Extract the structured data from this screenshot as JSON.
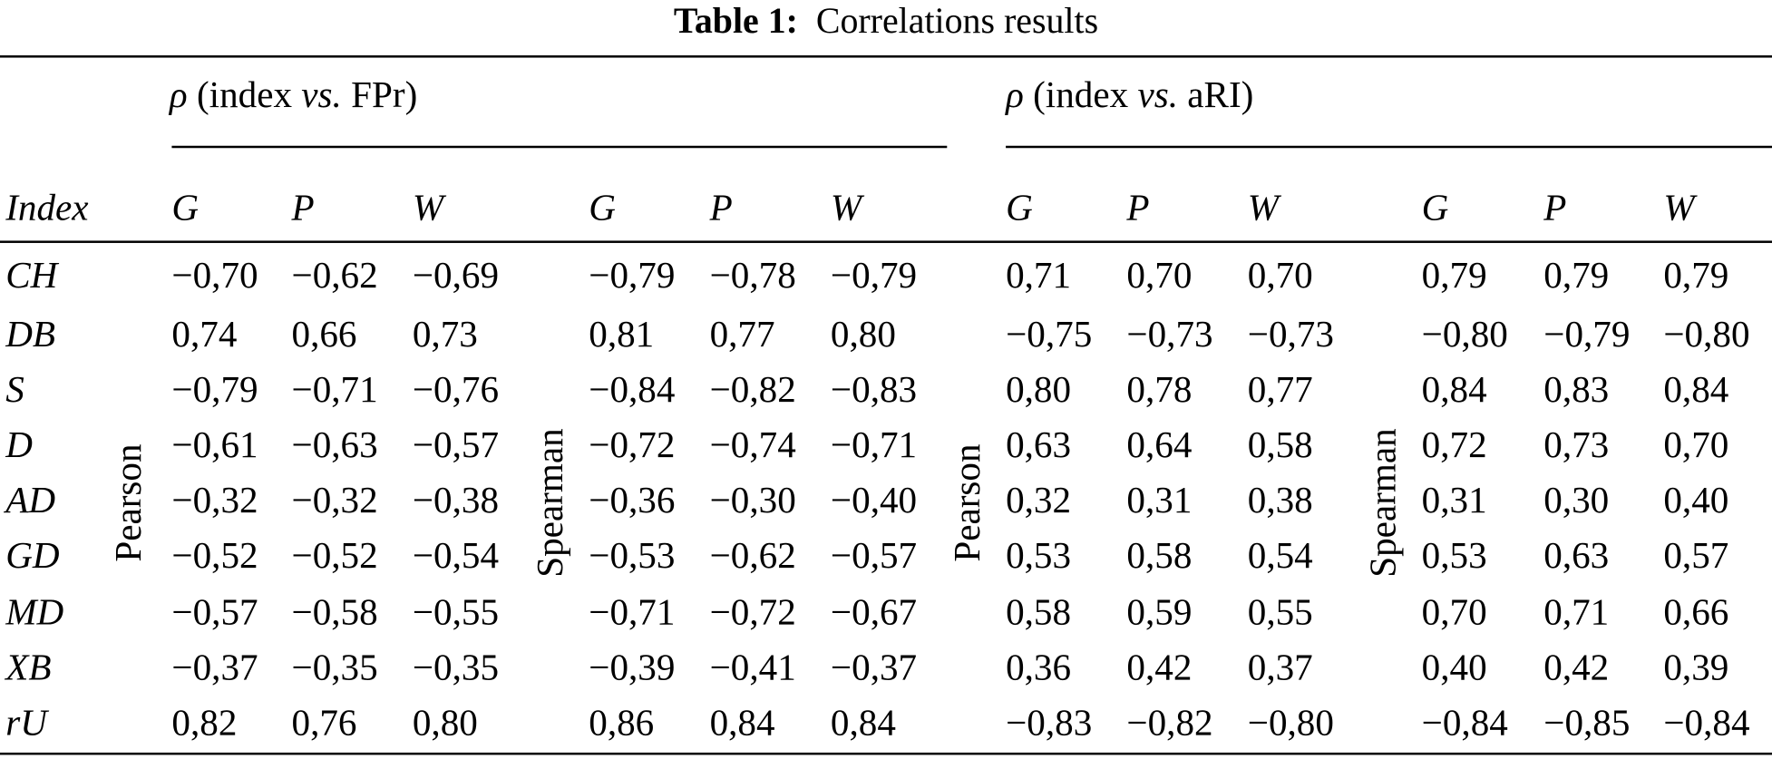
{
  "caption": {
    "label": "Table 1:",
    "text": "Correlations results"
  },
  "groups": [
    {
      "parts": [
        "ρ",
        "(index",
        "vs.",
        "FPr)"
      ],
      "methods": [
        "Pearson",
        "Spearman"
      ]
    },
    {
      "parts": [
        "ρ",
        "(index",
        "vs.",
        "aRI)"
      ],
      "methods": [
        "Pearson",
        "Spearman"
      ]
    }
  ],
  "columns": {
    "index": "Index",
    "sub": [
      "G",
      "P",
      "W",
      "G",
      "P",
      "W",
      "G",
      "P",
      "W",
      "G",
      "P",
      "W"
    ]
  },
  "rows": [
    {
      "name": "CH",
      "values": [
        "−0,70",
        "−0,62",
        "−0,69",
        "−0,79",
        "−0,78",
        "−0,79",
        "0,71",
        "0,70",
        "0,70",
        "0,79",
        "0,79",
        "0,79"
      ]
    },
    {
      "name": "DB",
      "values": [
        "0,74",
        "0,66",
        "0,73",
        "0,81",
        "0,77",
        "0,80",
        "−0,75",
        "−0,73",
        "−0,73",
        "−0,80",
        "−0,79",
        "−0,80"
      ]
    },
    {
      "name": "S",
      "values": [
        "−0,79",
        "−0,71",
        "−0,76",
        "−0,84",
        "−0,82",
        "−0,83",
        "0,80",
        "0,78",
        "0,77",
        "0,84",
        "0,83",
        "0,84"
      ]
    },
    {
      "name": "D",
      "values": [
        "−0,61",
        "−0,63",
        "−0,57",
        "−0,72",
        "−0,74",
        "−0,71",
        "0,63",
        "0,64",
        "0,58",
        "0,72",
        "0,73",
        "0,70"
      ]
    },
    {
      "name": "AD",
      "values": [
        "−0,32",
        "−0,32",
        "−0,38",
        "−0,36",
        "−0,30",
        "−0,40",
        "0,32",
        "0,31",
        "0,38",
        "0,31",
        "0,30",
        "0,40"
      ]
    },
    {
      "name": "GD",
      "values": [
        "−0,52",
        "−0,52",
        "−0,54",
        "−0,53",
        "−0,62",
        "−0,57",
        "0,53",
        "0,58",
        "0,54",
        "0,53",
        "0,63",
        "0,57"
      ]
    },
    {
      "name": "MD",
      "values": [
        "−0,57",
        "−0,58",
        "−0,55",
        "−0,71",
        "−0,72",
        "−0,67",
        "0,58",
        "0,59",
        "0,55",
        "0,70",
        "0,71",
        "0,66"
      ]
    },
    {
      "name": "XB",
      "values": [
        "−0,37",
        "−0,35",
        "−0,35",
        "−0,39",
        "−0,41",
        "−0,37",
        "0,36",
        "0,42",
        "0,37",
        "0,40",
        "0,42",
        "0,39"
      ]
    },
    {
      "name": "rU",
      "values": [
        "0,82",
        "0,76",
        "0,80",
        "0,86",
        "0,84",
        "0,84",
        "−0,83",
        "−0,82",
        "−0,80",
        "−0,84",
        "−0,85",
        "−0,84"
      ]
    }
  ]
}
